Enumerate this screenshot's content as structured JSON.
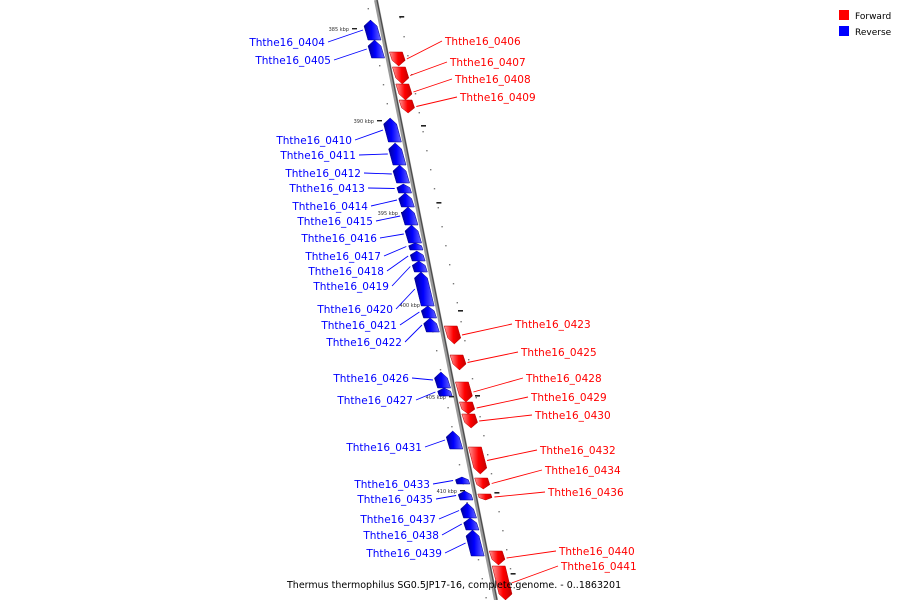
{
  "legend": {
    "forward_label": "Forward",
    "reverse_label": "Reverse",
    "forward_color": "#ff0000",
    "reverse_color": "#0000ff"
  },
  "caption": "Thermus thermophilus SG0.5JP17-16, complete genome. - 0..1863201",
  "scale_ticks": [
    "385 kbp",
    "390 kbp",
    "395 kbp",
    "400 kbp",
    "405 kbp",
    "410 kbp"
  ],
  "genes": [
    {
      "name": "Ththe16_0404",
      "strand": "reverse"
    },
    {
      "name": "Ththe16_0405",
      "strand": "reverse"
    },
    {
      "name": "Ththe16_0406",
      "strand": "forward"
    },
    {
      "name": "Ththe16_0407",
      "strand": "forward"
    },
    {
      "name": "Ththe16_0408",
      "strand": "forward"
    },
    {
      "name": "Ththe16_0409",
      "strand": "forward"
    },
    {
      "name": "Ththe16_0410",
      "strand": "reverse"
    },
    {
      "name": "Ththe16_0411",
      "strand": "reverse"
    },
    {
      "name": "Ththe16_0412",
      "strand": "reverse"
    },
    {
      "name": "Ththe16_0413",
      "strand": "reverse"
    },
    {
      "name": "Ththe16_0414",
      "strand": "reverse"
    },
    {
      "name": "Ththe16_0415",
      "strand": "reverse"
    },
    {
      "name": "Ththe16_0416",
      "strand": "reverse"
    },
    {
      "name": "Ththe16_0417",
      "strand": "reverse"
    },
    {
      "name": "Ththe16_0418",
      "strand": "reverse"
    },
    {
      "name": "Ththe16_0419",
      "strand": "reverse"
    },
    {
      "name": "Ththe16_0420",
      "strand": "reverse"
    },
    {
      "name": "Ththe16_0421",
      "strand": "reverse"
    },
    {
      "name": "Ththe16_0422",
      "strand": "reverse"
    },
    {
      "name": "Ththe16_0423",
      "strand": "forward"
    },
    {
      "name": "Ththe16_0425",
      "strand": "forward"
    },
    {
      "name": "Ththe16_0426",
      "strand": "reverse"
    },
    {
      "name": "Ththe16_0427",
      "strand": "reverse"
    },
    {
      "name": "Ththe16_0428",
      "strand": "forward"
    },
    {
      "name": "Ththe16_0429",
      "strand": "forward"
    },
    {
      "name": "Ththe16_0430",
      "strand": "forward"
    },
    {
      "name": "Ththe16_0431",
      "strand": "reverse"
    },
    {
      "name": "Ththe16_0432",
      "strand": "forward"
    },
    {
      "name": "Ththe16_0433",
      "strand": "reverse"
    },
    {
      "name": "Ththe16_0434",
      "strand": "forward"
    },
    {
      "name": "Ththe16_0435",
      "strand": "reverse"
    },
    {
      "name": "Ththe16_0436",
      "strand": "forward"
    },
    {
      "name": "Ththe16_0437",
      "strand": "reverse"
    },
    {
      "name": "Ththe16_0438",
      "strand": "reverse"
    },
    {
      "name": "Ththe16_0439",
      "strand": "reverse"
    },
    {
      "name": "Ththe16_0440",
      "strand": "forward"
    },
    {
      "name": "Ththe16_0441",
      "strand": "forward"
    }
  ]
}
